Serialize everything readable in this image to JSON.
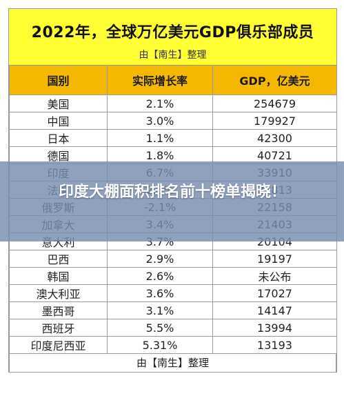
{
  "header": {
    "title": "2022年，全球万亿美元GDP俱乐部成员",
    "subtitle": "由【南生】整理"
  },
  "table": {
    "columns": [
      "国别",
      "实际增长率",
      "GDP，亿美元"
    ],
    "rows": [
      {
        "country": "美国",
        "growth": "2.1%",
        "gdp": "254679"
      },
      {
        "country": "中国",
        "growth": "3.0%",
        "gdp": "179927"
      },
      {
        "country": "日本",
        "growth": "1.1%",
        "gdp": "42300"
      },
      {
        "country": "德国",
        "growth": "1.8%",
        "gdp": "40721"
      },
      {
        "country": "印度",
        "growth": "6.7%",
        "gdp": "33910"
      },
      {
        "country": "法国",
        "growth": "2.5%",
        "gdp": "27813"
      },
      {
        "country": "俄罗斯",
        "growth": "-2.1%",
        "gdp": "22158"
      },
      {
        "country": "加拿大",
        "growth": "3.4%",
        "gdp": "21403"
      },
      {
        "country": "意大利",
        "growth": "3.7%",
        "gdp": "20104"
      },
      {
        "country": "巴西",
        "growth": "2.9%",
        "gdp": "19197"
      },
      {
        "country": "韩国",
        "growth": "2.6%",
        "gdp": "未公布"
      },
      {
        "country": "澳大利亚",
        "growth": "3.6%",
        "gdp": "17027"
      },
      {
        "country": "墨西哥",
        "growth": "3.1%",
        "gdp": "14147"
      },
      {
        "country": "西班牙",
        "growth": "5.5%",
        "gdp": "13994"
      },
      {
        "country": "印度尼西亚",
        "growth": "5.31%",
        "gdp": "13193"
      }
    ]
  },
  "footer": {
    "text": "由【南生】整理"
  },
  "overlay": {
    "headline": "印度大棚面积排名前十榜单揭晓！"
  },
  "colors": {
    "header_bg": "#ffff33",
    "column_header_bg": "#f5b800",
    "overlay_bg": "#788caf"
  }
}
